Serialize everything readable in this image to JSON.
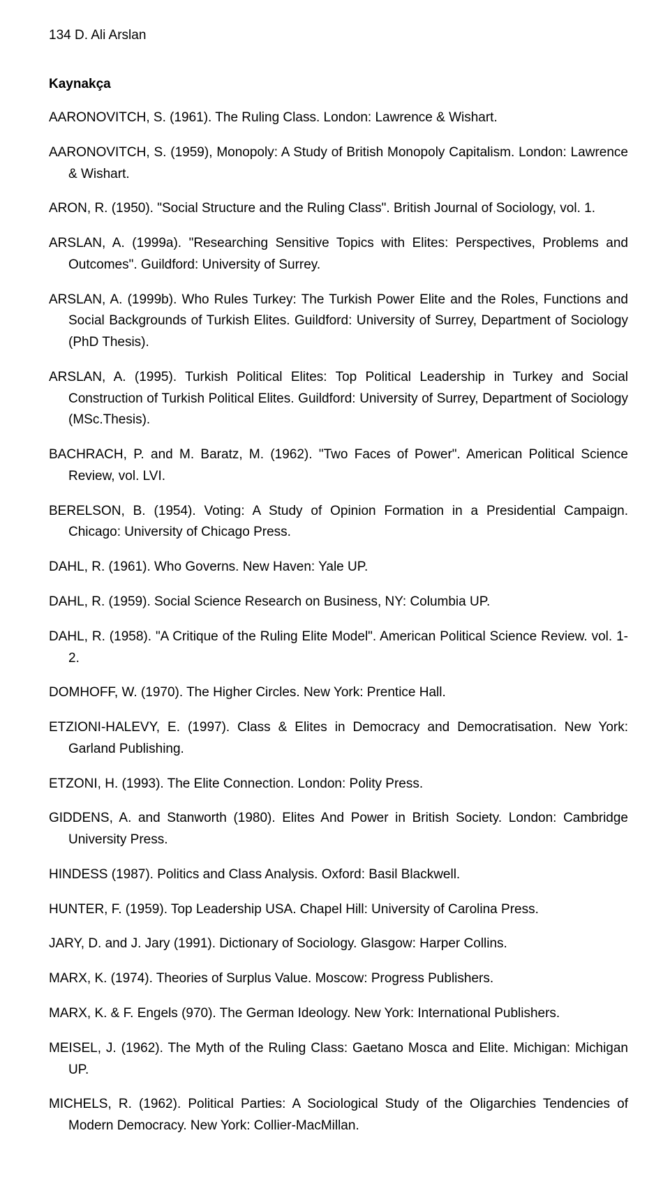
{
  "header": "134  D. Ali Arslan",
  "section_title": "Kaynakça",
  "references": [
    "AARONOVITCH, S. (1961). The Ruling Class. London: Lawrence & Wishart.",
    "AARONOVITCH, S. (1959), Monopoly: A Study of British Monopoly Capitalism. London: Lawrence & Wishart.",
    "ARON, R. (1950). \"Social Structure and the Ruling Class\". British Journal of Sociology, vol. 1.",
    "ARSLAN, A. (1999a). \"Researching Sensitive Topics with Elites: Perspectives, Problems and Outcomes\". Guildford: University of Surrey.",
    "ARSLAN, A. (1999b). Who Rules Turkey: The Turkish Power Elite and the Roles, Functions and Social Backgrounds of Turkish Elites. Guildford: University of Surrey, Department of Sociology (PhD Thesis).",
    "ARSLAN, A. (1995). Turkish Political Elites: Top Political Leadership in Turkey and Social Construction of Turkish Political Elites. Guildford: University of Surrey, Department of Sociology (MSc.Thesis).",
    "BACHRACH, P. and M. Baratz, M. (1962). \"Two Faces of Power\". American Political Science Review, vol. LVI.",
    "BERELSON, B. (1954). Voting: A Study of Opinion Formation in a Presidential Campaign. Chicago: University of Chicago Press.",
    "DAHL, R. (1961). Who Governs. New Haven: Yale UP.",
    "DAHL, R. (1959). Social Science Research on Business, NY: Columbia UP.",
    "DAHL, R. (1958). \"A Critique of the Ruling Elite Model\". American Political Science Review. vol. 1-2.",
    "DOMHOFF, W. (1970). The Higher Circles. New York: Prentice Hall.",
    "ETZIONI-HALEVY, E. (1997). Class & Elites in Democracy and Democratisation. New York: Garland Publishing.",
    "ETZONI, H. (1993). The Elite Connection. London: Polity Press.",
    "GIDDENS, A. and Stanworth (1980). Elites And Power in British Society. London: Cambridge University Press.",
    "HINDESS (1987). Politics and Class Analysis. Oxford: Basil Blackwell.",
    "HUNTER, F. (1959). Top Leadership USA. Chapel Hill: University of Carolina Press.",
    "JARY, D. and J. Jary (1991). Dictionary of Sociology. Glasgow: Harper Collins.",
    "MARX, K. (1974). Theories of Surplus Value. Moscow: Progress Publishers.",
    "MARX, K. & F. Engels (970). The German Ideology. New York: International Publishers.",
    "MEISEL, J. (1962). The Myth of the Ruling Class: Gaetano Mosca and Elite. Michigan: Michigan UP.",
    "MICHELS, R. (1962). Political Parties: A Sociological Study of the Oligarchies Tendencies of Modern Democracy. New York: Collier-MacMillan."
  ]
}
